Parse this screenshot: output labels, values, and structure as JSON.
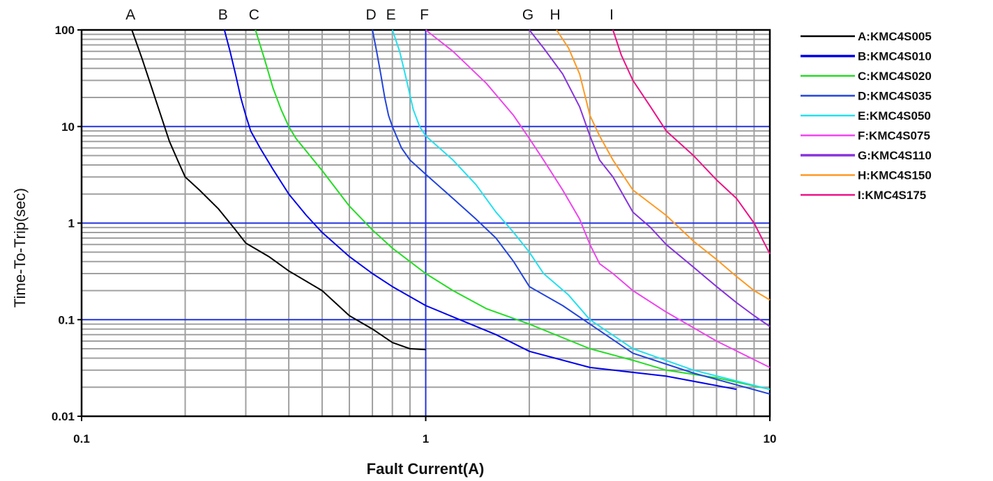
{
  "chart_data": {
    "type": "line",
    "xlabel": "Fault Current(A)",
    "ylabel": "Time-To-Trip(sec)",
    "x_scale": "log",
    "y_scale": "log",
    "xlim": [
      0.1,
      10
    ],
    "ylim": [
      0.01,
      100
    ],
    "x_ticks": [
      "0.1",
      "1",
      "10"
    ],
    "y_ticks": [
      "100",
      "10",
      "1",
      "0.1",
      "0.01"
    ],
    "grid": true,
    "legend_position": "right",
    "series": [
      {
        "letter": "A",
        "name": "A:KMC4S005",
        "color": "#000000",
        "points": [
          [
            0.14,
            100
          ],
          [
            0.15,
            50
          ],
          [
            0.16,
            25
          ],
          [
            0.17,
            13
          ],
          [
            0.18,
            7
          ],
          [
            0.19,
            4.5
          ],
          [
            0.2,
            3
          ],
          [
            0.22,
            2.2
          ],
          [
            0.25,
            1.4
          ],
          [
            0.28,
            0.85
          ],
          [
            0.3,
            0.62
          ],
          [
            0.35,
            0.45
          ],
          [
            0.4,
            0.32
          ],
          [
            0.5,
            0.2
          ],
          [
            0.6,
            0.11
          ],
          [
            0.7,
            0.08
          ],
          [
            0.8,
            0.058
          ],
          [
            0.9,
            0.05
          ],
          [
            1.0,
            0.049
          ]
        ]
      },
      {
        "letter": "B",
        "name": "B:KMC4S010",
        "color": "#0000ee",
        "points": [
          [
            0.26,
            100
          ],
          [
            0.27,
            60
          ],
          [
            0.28,
            35
          ],
          [
            0.29,
            20
          ],
          [
            0.3,
            13
          ],
          [
            0.31,
            9
          ],
          [
            0.33,
            6
          ],
          [
            0.36,
            3.6
          ],
          [
            0.4,
            2
          ],
          [
            0.45,
            1.2
          ],
          [
            0.5,
            0.8
          ],
          [
            0.6,
            0.45
          ],
          [
            0.7,
            0.3
          ],
          [
            0.8,
            0.22
          ],
          [
            1.0,
            0.14
          ],
          [
            1.3,
            0.095
          ],
          [
            1.6,
            0.07
          ],
          [
            2.0,
            0.047
          ],
          [
            3.0,
            0.032
          ],
          [
            5.0,
            0.026
          ],
          [
            8.0,
            0.019
          ]
        ]
      },
      {
        "letter": "C",
        "name": "C:KMC4S020",
        "color": "#22dd22",
        "points": [
          [
            0.32,
            100
          ],
          [
            0.34,
            50
          ],
          [
            0.36,
            25
          ],
          [
            0.38,
            15
          ],
          [
            0.4,
            10
          ],
          [
            0.42,
            7.5
          ],
          [
            0.5,
            3.5
          ],
          [
            0.6,
            1.5
          ],
          [
            0.7,
            0.85
          ],
          [
            0.8,
            0.55
          ],
          [
            1.0,
            0.3
          ],
          [
            1.2,
            0.2
          ],
          [
            1.5,
            0.13
          ],
          [
            2.0,
            0.09
          ],
          [
            3.0,
            0.05
          ],
          [
            4.0,
            0.038
          ],
          [
            5.0,
            0.03
          ],
          [
            7.0,
            0.025
          ],
          [
            10.0,
            0.019
          ]
        ]
      },
      {
        "letter": "D",
        "name": "D:KMC4S035",
        "color": "#2244dd",
        "points": [
          [
            0.7,
            100
          ],
          [
            0.72,
            60
          ],
          [
            0.74,
            35
          ],
          [
            0.76,
            20
          ],
          [
            0.78,
            13
          ],
          [
            0.8,
            10
          ],
          [
            0.85,
            6
          ],
          [
            0.9,
            4.5
          ],
          [
            1.0,
            3.2
          ],
          [
            1.2,
            1.8
          ],
          [
            1.4,
            1.1
          ],
          [
            1.6,
            0.7
          ],
          [
            1.8,
            0.4
          ],
          [
            2.0,
            0.22
          ],
          [
            2.5,
            0.14
          ],
          [
            3.0,
            0.09
          ],
          [
            4.0,
            0.045
          ],
          [
            6.0,
            0.028
          ],
          [
            10.0,
            0.017
          ]
        ]
      },
      {
        "letter": "E",
        "name": "E:KMC4S050",
        "color": "#22e0f0",
        "points": [
          [
            0.8,
            100
          ],
          [
            0.84,
            60
          ],
          [
            0.88,
            30
          ],
          [
            0.92,
            15
          ],
          [
            0.96,
            10
          ],
          [
            1.0,
            8
          ],
          [
            1.2,
            4.5
          ],
          [
            1.4,
            2.5
          ],
          [
            1.6,
            1.3
          ],
          [
            1.8,
            0.8
          ],
          [
            2.0,
            0.5
          ],
          [
            2.2,
            0.3
          ],
          [
            2.6,
            0.18
          ],
          [
            3.0,
            0.1
          ],
          [
            4.0,
            0.05
          ],
          [
            6.0,
            0.03
          ],
          [
            10.0,
            0.019
          ]
        ]
      },
      {
        "letter": "F",
        "name": "F:KMC4S075",
        "color": "#ee44ee",
        "points": [
          [
            1.0,
            100
          ],
          [
            1.2,
            60
          ],
          [
            1.5,
            28
          ],
          [
            1.8,
            13
          ],
          [
            2.0,
            7.5
          ],
          [
            2.2,
            4.5
          ],
          [
            2.5,
            2.2
          ],
          [
            2.8,
            1.1
          ],
          [
            3.0,
            0.6
          ],
          [
            3.2,
            0.38
          ],
          [
            3.5,
            0.3
          ],
          [
            4.0,
            0.2
          ],
          [
            5.0,
            0.12
          ],
          [
            7.0,
            0.06
          ],
          [
            10.0,
            0.032
          ]
        ]
      },
      {
        "letter": "G",
        "name": "G:KMC4S110",
        "color": "#8833dd",
        "points": [
          [
            2.0,
            100
          ],
          [
            2.2,
            65
          ],
          [
            2.5,
            35
          ],
          [
            2.8,
            16
          ],
          [
            3.0,
            8
          ],
          [
            3.2,
            4.5
          ],
          [
            3.5,
            3
          ],
          [
            4.0,
            1.3
          ],
          [
            4.5,
            0.9
          ],
          [
            5.0,
            0.6
          ],
          [
            6.0,
            0.35
          ],
          [
            7.0,
            0.22
          ],
          [
            8.0,
            0.15
          ],
          [
            9.0,
            0.11
          ],
          [
            10.0,
            0.085
          ]
        ]
      },
      {
        "letter": "H",
        "name": "H:KMC4S150",
        "color": "#ff9922",
        "points": [
          [
            2.4,
            100
          ],
          [
            2.6,
            65
          ],
          [
            2.8,
            35
          ],
          [
            3.0,
            13
          ],
          [
            3.2,
            8
          ],
          [
            3.5,
            4.5
          ],
          [
            4.0,
            2.2
          ],
          [
            5.0,
            1.2
          ],
          [
            6.0,
            0.65
          ],
          [
            7.0,
            0.42
          ],
          [
            8.0,
            0.28
          ],
          [
            9.0,
            0.2
          ],
          [
            10.0,
            0.16
          ]
        ]
      },
      {
        "letter": "I",
        "name": "I:KMC4S175",
        "color": "#ee1188",
        "points": [
          [
            3.5,
            100
          ],
          [
            3.7,
            55
          ],
          [
            4.0,
            30
          ],
          [
            4.5,
            16
          ],
          [
            5.0,
            9
          ],
          [
            6.0,
            5
          ],
          [
            7.0,
            2.8
          ],
          [
            8.0,
            1.8
          ],
          [
            9.0,
            1.0
          ],
          [
            10.0,
            0.48
          ]
        ]
      }
    ]
  }
}
